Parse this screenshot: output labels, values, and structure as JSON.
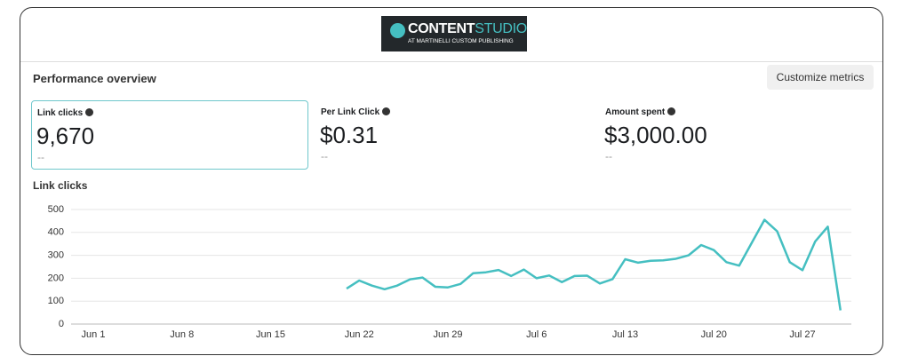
{
  "header": {
    "logo_bold": "CONTENT",
    "logo_light": "STUDIO",
    "logo_sub": "AT MARTINELLI CUSTOM PUBLISHING"
  },
  "section_title": "Performance overview",
  "button": "Customize metrics",
  "metrics": [
    {
      "label": "Link clicks",
      "value": "9,670",
      "delta": "--"
    },
    {
      "label": "Per Link Click",
      "value": "$0.31",
      "delta": "--"
    },
    {
      "label": "Amount spent",
      "value": "$3,000.00",
      "delta": "--"
    }
  ],
  "chart_data": {
    "type": "line",
    "title": "Link clicks",
    "categories": [
      "Jun 1",
      null,
      null,
      null,
      null,
      null,
      null,
      "Jun 8",
      null,
      null,
      null,
      null,
      null,
      null,
      "Jun 15",
      null,
      null,
      null,
      null,
      null,
      null,
      "Jun 22",
      null,
      null,
      null,
      null,
      null,
      null,
      "Jun 29",
      null,
      null,
      null,
      null,
      null,
      null,
      "Jul 6",
      null,
      null,
      null,
      null,
      null,
      null,
      "Jul 13",
      null,
      null,
      null,
      null,
      null,
      null,
      "Jul 20",
      null,
      null,
      null,
      null,
      null,
      null,
      "Jul 27",
      null,
      null,
      null
    ],
    "series": [
      {
        "name": "Link clicks",
        "color": "#45bfc1",
        "values": [
          null,
          null,
          null,
          null,
          null,
          null,
          null,
          null,
          null,
          null,
          null,
          null,
          null,
          null,
          null,
          null,
          null,
          null,
          null,
          null,
          155,
          190,
          168,
          152,
          168,
          195,
          203,
          163,
          160,
          175,
          222,
          226,
          236,
          210,
          238,
          200,
          212,
          183,
          210,
          211,
          177,
          196,
          283,
          268,
          276,
          278,
          285,
          300,
          345,
          323,
          270,
          255,
          355,
          455,
          405,
          270,
          235,
          360,
          425,
          60
        ]
      }
    ],
    "ylim": [
      0,
      500
    ],
    "yticks": [
      0,
      100,
      200,
      300,
      400,
      500
    ],
    "grid": true
  }
}
